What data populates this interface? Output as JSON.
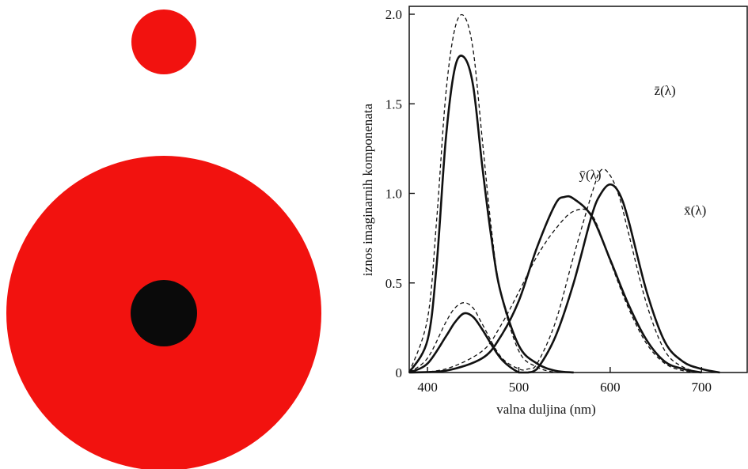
{
  "illustration": {
    "colors": {
      "disc": "#f2120f",
      "center": "#0a0a0a",
      "background": "#ffffff"
    }
  },
  "chart_data": {
    "type": "line",
    "title": "",
    "xlabel": "valna duljina (nm)",
    "ylabel": "iznos imaginarnih komponenata",
    "xlim": [
      380,
      750
    ],
    "ylim": [
      0,
      2.0
    ],
    "xticks": [
      400,
      500,
      600,
      700
    ],
    "yticks": [
      0,
      0.5,
      1.0,
      1.5,
      2.0
    ],
    "xtick_labels": [
      "400",
      "500",
      "600",
      "700"
    ],
    "ytick_labels": [
      "0",
      "0.5",
      "1.0",
      "1.5",
      "2.0"
    ],
    "grid": false,
    "legend": "none",
    "series": [
      {
        "name": "z̄(λ)",
        "style": "solid",
        "x": [
          380,
          400,
          410,
          420,
          430,
          440,
          450,
          460,
          470,
          480,
          500,
          520,
          540,
          560
        ],
        "y": [
          0.0,
          0.18,
          0.6,
          1.3,
          1.7,
          1.76,
          1.6,
          1.15,
          0.75,
          0.45,
          0.15,
          0.05,
          0.01,
          0.0
        ]
      },
      {
        "name": "ȳ(λ)",
        "style": "solid",
        "x": [
          380,
          420,
          460,
          480,
          500,
          520,
          540,
          550,
          560,
          580,
          600,
          620,
          640,
          660,
          680,
          700
        ],
        "y": [
          0.0,
          0.01,
          0.08,
          0.2,
          0.4,
          0.7,
          0.94,
          0.98,
          0.97,
          0.87,
          0.63,
          0.38,
          0.18,
          0.06,
          0.02,
          0.0
        ]
      },
      {
        "name": "x̄(λ)",
        "style": "solid",
        "x": [
          380,
          400,
          420,
          430,
          440,
          450,
          460,
          480,
          500,
          510,
          520,
          540,
          560,
          580,
          590,
          600,
          610,
          620,
          640,
          660,
          680,
          700,
          720
        ],
        "y": [
          0.0,
          0.05,
          0.2,
          0.28,
          0.33,
          0.31,
          0.24,
          0.08,
          0.0,
          0.0,
          0.02,
          0.2,
          0.5,
          0.88,
          1.0,
          1.05,
          1.0,
          0.85,
          0.45,
          0.17,
          0.06,
          0.02,
          0.0
        ]
      },
      {
        "style": "dashed",
        "x": [
          380,
          400,
          410,
          420,
          430,
          440,
          450,
          460,
          470,
          480,
          500,
          520,
          540
        ],
        "y": [
          0.0,
          0.3,
          0.85,
          1.55,
          1.92,
          1.99,
          1.8,
          1.3,
          0.8,
          0.45,
          0.12,
          0.03,
          0.0
        ]
      },
      {
        "style": "dashed",
        "x": [
          380,
          420,
          460,
          480,
          500,
          520,
          540,
          560,
          580,
          600,
          620,
          640,
          660,
          680,
          700
        ],
        "y": [
          0.0,
          0.02,
          0.12,
          0.26,
          0.45,
          0.65,
          0.8,
          0.9,
          0.88,
          0.62,
          0.36,
          0.16,
          0.05,
          0.01,
          0.0
        ]
      },
      {
        "style": "dashed",
        "x": [
          380,
          400,
          420,
          430,
          440,
          450,
          460,
          480,
          500,
          510,
          520,
          540,
          560,
          580,
          590,
          600,
          610,
          620,
          640,
          660,
          680,
          700
        ],
        "y": [
          0.0,
          0.08,
          0.28,
          0.36,
          0.39,
          0.36,
          0.27,
          0.09,
          0.02,
          0.02,
          0.05,
          0.28,
          0.65,
          1.0,
          1.13,
          1.1,
          0.98,
          0.78,
          0.38,
          0.12,
          0.03,
          0.0
        ]
      }
    ],
    "annotations": [
      {
        "text": "z̄(λ)",
        "x": 660,
        "y": 1.55
      },
      {
        "text": "ȳ(λ)",
        "x": 578,
        "y": 1.08
      },
      {
        "text": "x̄(λ)",
        "x": 693,
        "y": 0.88
      }
    ]
  }
}
